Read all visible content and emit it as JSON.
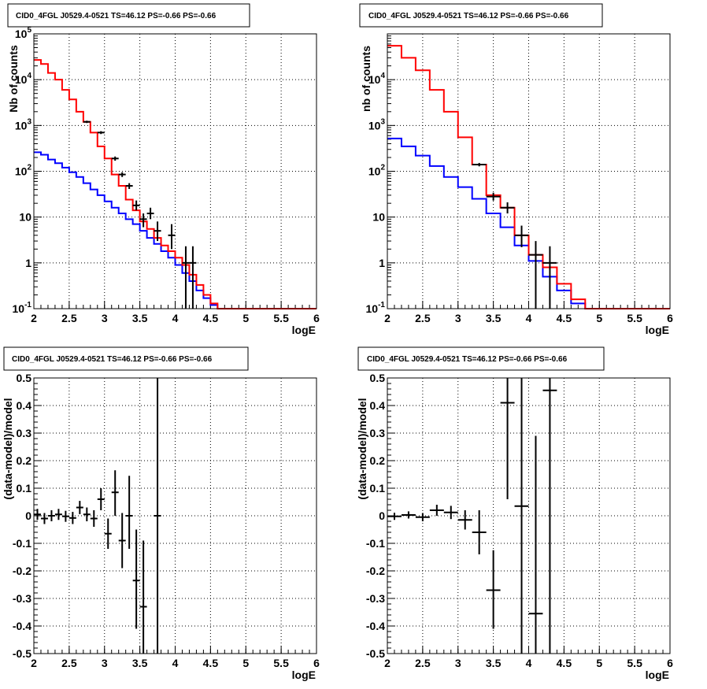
{
  "chart_data": [
    {
      "id": "p1",
      "type": "step-histogram-log",
      "title": "CID0_4FGL J0529.4-0521 TS=46.12 PS=-0.66 PS=-0.66",
      "xlabel": "logE",
      "ylabel": "Nb of counts",
      "xlim": [
        2,
        6
      ],
      "ylim": [
        0.1,
        100000
      ],
      "log_y": true,
      "grid": true,
      "x_ticks": [
        "2",
        "2.5",
        "3",
        "3.5",
        "4",
        "4.5",
        "5",
        "5.5",
        "6"
      ],
      "y_ticks": [
        {
          "value": 0.1,
          "base": "10",
          "exp": "-1"
        },
        {
          "value": 1,
          "base": "1",
          "exp": ""
        },
        {
          "value": 10,
          "base": "10",
          "exp": ""
        },
        {
          "value": 100,
          "base": "10",
          "exp": "2"
        },
        {
          "value": 1000,
          "base": "10",
          "exp": "3"
        },
        {
          "value": 10000,
          "base": "10",
          "exp": "4"
        },
        {
          "value": 100000,
          "base": "10",
          "exp": "5"
        }
      ],
      "bin_edges": [
        2.0,
        2.1,
        2.2,
        2.3,
        2.4,
        2.5,
        2.6,
        2.7,
        2.8,
        2.9,
        3.0,
        3.1,
        3.2,
        3.3,
        3.4,
        3.5,
        3.6,
        3.7,
        3.8,
        3.9,
        4.0,
        4.1,
        4.2,
        4.3,
        4.4,
        4.5,
        4.6,
        4.7,
        4.8,
        4.9,
        5.0,
        5.1,
        5.2,
        5.3,
        5.4,
        5.5,
        5.6,
        5.7,
        5.8,
        5.9,
        6.0
      ],
      "series": [
        {
          "kind": "model",
          "color": "#ff0000",
          "values": [
            27000,
            22000,
            14000,
            10000,
            6000,
            3700,
            2000,
            1200,
            700,
            350,
            190,
            85,
            48,
            24,
            14,
            8,
            5.5,
            3.5,
            2.4,
            1.8,
            1.3,
            0.9,
            0.55,
            0.33,
            0.2,
            0.13,
            0.1,
            0.1,
            0.1,
            0.1,
            0.1,
            0.1,
            0.1,
            0.1,
            0.1,
            0.1,
            0.1,
            0.1,
            0.1,
            0.1
          ]
        },
        {
          "kind": "background",
          "color": "#0000ff",
          "values": [
            260,
            230,
            180,
            150,
            120,
            95,
            75,
            55,
            40,
            30,
            22,
            16,
            12,
            9,
            7,
            5,
            3.5,
            2.6,
            1.8,
            1.3,
            0.9,
            0.6,
            0.4,
            0.25,
            0.17,
            0.12,
            0.1,
            0.1,
            0.1,
            0.1,
            0.1,
            0.1,
            0.1,
            0.1,
            0.1,
            0.1,
            0.1,
            0.1,
            0.1,
            0.1
          ]
        }
      ],
      "points": [
        {
          "x": 2.75,
          "y": 1200,
          "lo": 1130,
          "hi": 1270
        },
        {
          "x": 2.95,
          "y": 700,
          "lo": 650,
          "hi": 750
        },
        {
          "x": 3.15,
          "y": 190,
          "lo": 170,
          "hi": 210
        },
        {
          "x": 3.25,
          "y": 85,
          "lo": 75,
          "hi": 95
        },
        {
          "x": 3.35,
          "y": 48,
          "lo": 41,
          "hi": 55
        },
        {
          "x": 3.45,
          "y": 18,
          "lo": 14,
          "hi": 23
        },
        {
          "x": 3.55,
          "y": 9,
          "lo": 6,
          "hi": 12
        },
        {
          "x": 3.65,
          "y": 12,
          "lo": 9,
          "hi": 16
        },
        {
          "x": 3.75,
          "y": 5,
          "lo": 3,
          "hi": 8
        },
        {
          "x": 3.95,
          "y": 4,
          "lo": 2,
          "hi": 7
        },
        {
          "x": 4.15,
          "y": 1,
          "lo": 0.1,
          "hi": 2.3
        },
        {
          "x": 4.25,
          "y": 1,
          "lo": 0.1,
          "hi": 2.3
        }
      ],
      "point_half_width": 0.05
    },
    {
      "id": "p2",
      "type": "step-histogram-log",
      "title": "CID0_4FGL J0529.4-0521 TS=46.12 PS=-0.66 PS=-0.66",
      "xlabel": "logE",
      "ylabel": "nb of counts",
      "xlim": [
        2,
        6
      ],
      "ylim": [
        0.1,
        100000
      ],
      "log_y": true,
      "grid": true,
      "x_ticks": [
        "2",
        "2.5",
        "3",
        "3.5",
        "4",
        "4.5",
        "5",
        "5.5",
        "6"
      ],
      "y_ticks": [
        {
          "value": 0.1,
          "base": "10",
          "exp": "-1"
        },
        {
          "value": 1,
          "base": "1",
          "exp": ""
        },
        {
          "value": 10,
          "base": "10",
          "exp": ""
        },
        {
          "value": 100,
          "base": "10",
          "exp": "2"
        },
        {
          "value": 1000,
          "base": "10",
          "exp": "3"
        },
        {
          "value": 10000,
          "base": "10",
          "exp": "4"
        }
      ],
      "bin_edges": [
        2.0,
        2.2,
        2.4,
        2.6,
        2.8,
        3.0,
        3.2,
        3.4,
        3.6,
        3.8,
        4.0,
        4.2,
        4.4,
        4.6,
        4.8,
        5.0,
        5.2,
        5.4,
        5.6,
        5.8,
        6.0
      ],
      "series": [
        {
          "kind": "model",
          "color": "#ff0000",
          "values": [
            55000,
            30000,
            16000,
            6000,
            2000,
            550,
            140,
            30,
            16,
            4,
            1.5,
            0.8,
            0.35,
            0.16,
            0.1,
            0.1,
            0.1,
            0.1,
            0.1,
            0.1
          ]
        },
        {
          "kind": "background",
          "color": "#0000ff",
          "values": [
            520,
            350,
            220,
            130,
            75,
            45,
            25,
            12,
            6,
            2.4,
            1.1,
            0.5,
            0.25,
            0.13,
            0.1,
            0.1,
            0.1,
            0.1,
            0.1,
            0.1
          ]
        }
      ],
      "points": [
        {
          "x": 3.3,
          "y": 140,
          "lo": 128,
          "hi": 152
        },
        {
          "x": 3.5,
          "y": 28,
          "lo": 23,
          "hi": 34
        },
        {
          "x": 3.7,
          "y": 16,
          "lo": 12,
          "hi": 21
        },
        {
          "x": 3.9,
          "y": 4,
          "lo": 2.2,
          "hi": 6.5
        },
        {
          "x": 4.1,
          "y": 1.5,
          "lo": 0.1,
          "hi": 3
        },
        {
          "x": 4.3,
          "y": 1,
          "lo": 0.1,
          "hi": 2.3
        }
      ],
      "point_half_width": 0.1
    },
    {
      "id": "p3",
      "type": "scatter-errorbars",
      "title": "CID0_4FGL J0529.4-0521 TS=46.12 PS=-0.66 PS=-0.66",
      "xlabel": "logE",
      "ylabel": "(data-model)/model",
      "xlim": [
        2,
        6
      ],
      "ylim": [
        -0.5,
        0.5
      ],
      "log_y": false,
      "grid": true,
      "x_ticks": [
        "2",
        "2.5",
        "3",
        "3.5",
        "4",
        "4.5",
        "5",
        "5.5",
        "6"
      ],
      "y_ticks": [
        "-0.5",
        "-0.4",
        "-0.3",
        "-0.2",
        "-0.1",
        "0",
        "0.1",
        "0.2",
        "0.3",
        "0.4",
        "0.5"
      ],
      "points": [
        {
          "x": 2.05,
          "y": 0.005,
          "lo": -0.015,
          "hi": 0.025
        },
        {
          "x": 2.15,
          "y": -0.01,
          "lo": -0.03,
          "hi": 0.01
        },
        {
          "x": 2.25,
          "y": 0.0,
          "lo": -0.02,
          "hi": 0.02
        },
        {
          "x": 2.35,
          "y": 0.005,
          "lo": -0.015,
          "hi": 0.025
        },
        {
          "x": 2.45,
          "y": -0.002,
          "lo": -0.022,
          "hi": 0.018
        },
        {
          "x": 2.55,
          "y": -0.008,
          "lo": -0.03,
          "hi": 0.014
        },
        {
          "x": 2.65,
          "y": 0.03,
          "lo": 0.006,
          "hi": 0.054
        },
        {
          "x": 2.75,
          "y": 0.005,
          "lo": -0.02,
          "hi": 0.03
        },
        {
          "x": 2.85,
          "y": -0.01,
          "lo": -0.04,
          "hi": 0.02
        },
        {
          "x": 2.95,
          "y": 0.06,
          "lo": 0.02,
          "hi": 0.1
        },
        {
          "x": 3.05,
          "y": -0.065,
          "lo": -0.12,
          "hi": -0.01
        },
        {
          "x": 3.15,
          "y": 0.085,
          "lo": 0.0,
          "hi": 0.165
        },
        {
          "x": 3.25,
          "y": -0.09,
          "lo": -0.19,
          "hi": 0.01
        },
        {
          "x": 3.35,
          "y": 0.0,
          "lo": -0.12,
          "hi": 0.145
        },
        {
          "x": 3.45,
          "y": -0.235,
          "lo": -0.41,
          "hi": -0.05
        },
        {
          "x": 3.55,
          "y": -0.33,
          "lo": -0.5,
          "hi": -0.09
        },
        {
          "x": 3.75,
          "y": 0.0,
          "lo": -0.5,
          "hi": 0.5
        }
      ],
      "point_half_width": 0.05
    },
    {
      "id": "p4",
      "type": "scatter-errorbars",
      "title": "CID0_4FGL J0529.4-0521 TS=46.12 PS=-0.66 PS=-0.66",
      "xlabel": "logE",
      "ylabel": "(data-model)/model",
      "xlim": [
        2,
        6
      ],
      "ylim": [
        -0.5,
        0.5
      ],
      "log_y": false,
      "grid": true,
      "x_ticks": [
        "2",
        "2.5",
        "3",
        "3.5",
        "4",
        "4.5",
        "5",
        "5.5",
        "6"
      ],
      "y_ticks": [
        "-0.5",
        "-0.4",
        "-0.3",
        "-0.2",
        "-0.1",
        "0",
        "0.1",
        "0.2",
        "0.3",
        "0.4",
        "0.5"
      ],
      "points": [
        {
          "x": 2.1,
          "y": -0.002,
          "lo": -0.015,
          "hi": 0.011
        },
        {
          "x": 2.3,
          "y": 0.003,
          "lo": -0.01,
          "hi": 0.016
        },
        {
          "x": 2.5,
          "y": -0.005,
          "lo": -0.02,
          "hi": 0.01
        },
        {
          "x": 2.7,
          "y": 0.02,
          "lo": 0.0,
          "hi": 0.04
        },
        {
          "x": 2.9,
          "y": 0.012,
          "lo": -0.012,
          "hi": 0.036
        },
        {
          "x": 3.1,
          "y": -0.015,
          "lo": -0.05,
          "hi": 0.02
        },
        {
          "x": 3.3,
          "y": -0.06,
          "lo": -0.14,
          "hi": 0.02
        },
        {
          "x": 3.5,
          "y": -0.27,
          "lo": -0.41,
          "hi": -0.125
        },
        {
          "x": 3.7,
          "y": 0.41,
          "lo": 0.06,
          "hi": 0.5
        },
        {
          "x": 3.9,
          "y": 0.035,
          "lo": -0.5,
          "hi": 0.5
        },
        {
          "x": 4.1,
          "y": -0.355,
          "lo": -0.5,
          "hi": 0.29
        },
        {
          "x": 4.3,
          "y": 0.455,
          "lo": -0.5,
          "hi": 0.5
        }
      ],
      "point_half_width": 0.1
    }
  ]
}
